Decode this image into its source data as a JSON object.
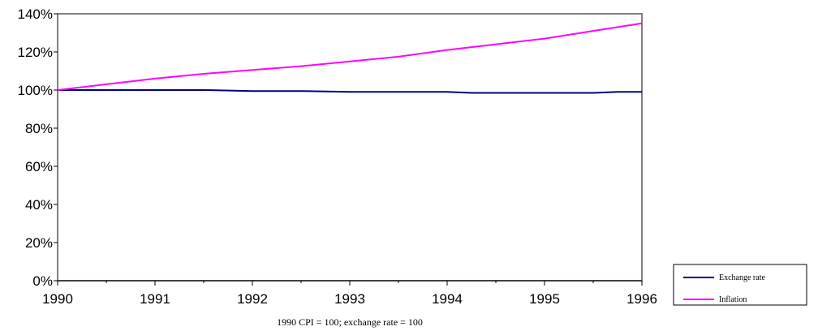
{
  "chart_data": {
    "type": "line",
    "title": "",
    "xlabel": "1990 CPI = 100; exchange rate = 100",
    "ylabel": "",
    "x_ticks": [
      "1990",
      "1991",
      "1992",
      "1993",
      "1994",
      "1995",
      "1996"
    ],
    "y_ticks": [
      "0%",
      "20%",
      "40%",
      "60%",
      "80%",
      "100%",
      "120%",
      "140%"
    ],
    "xlim": [
      1990,
      1996
    ],
    "ylim": [
      0,
      140
    ],
    "grid": false,
    "legend_position": "bottom-right",
    "series": [
      {
        "name": "Exchange rate",
        "color": "#000080",
        "x": [
          1990,
          1990.5,
          1991,
          1991.5,
          1992,
          1992.5,
          1993,
          1993.5,
          1994,
          1994.25,
          1994.5,
          1995,
          1995.5,
          1995.75,
          1996
        ],
        "y": [
          100,
          100,
          100,
          100,
          99.5,
          99.5,
          99,
          99,
          99,
          98.5,
          98.5,
          98.5,
          98.5,
          99,
          99
        ]
      },
      {
        "name": "Inflation",
        "color": "#ff00ff",
        "x": [
          1990,
          1990.5,
          1991,
          1991.5,
          1992,
          1992.5,
          1993,
          1993.5,
          1994,
          1994.5,
          1995,
          1995.5,
          1996
        ],
        "y": [
          100,
          103,
          106,
          108.5,
          110.5,
          112.5,
          115,
          117.5,
          121,
          124,
          127,
          131,
          135
        ]
      }
    ]
  }
}
